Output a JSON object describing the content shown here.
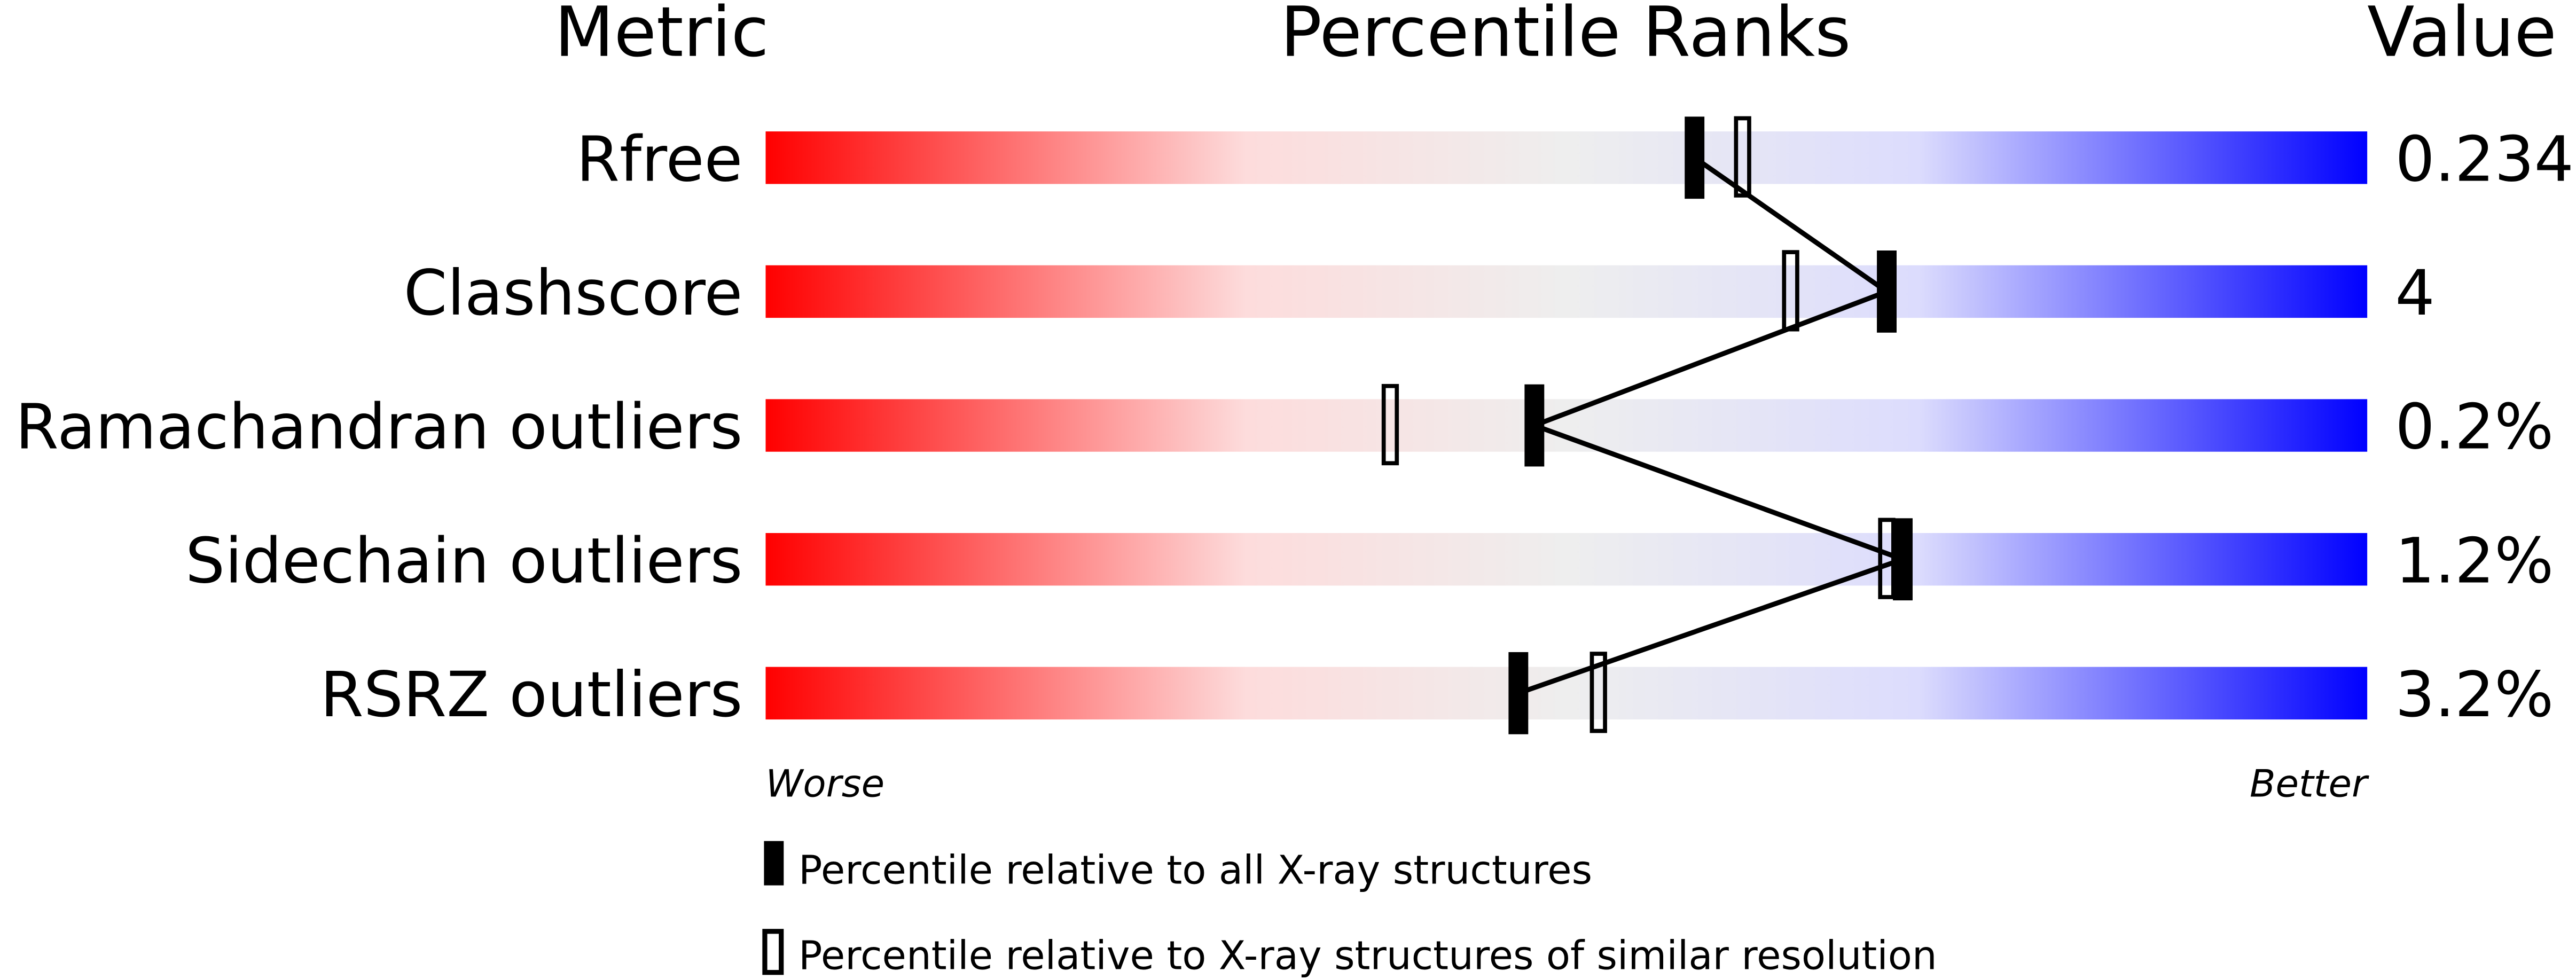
{
  "chart_data": {
    "type": "bar",
    "headers": {
      "metric": "Metric",
      "ranks": "Percentile Ranks",
      "value": "Value"
    },
    "xlim": [
      0,
      100
    ],
    "axis_labels": {
      "left": "Worse",
      "right": "Better"
    },
    "colors": {
      "worse": "#ff0000",
      "neutral": "#eeeeee",
      "better": "#0000ff",
      "marker": "#000000"
    },
    "rows": [
      {
        "metric": "Rfree",
        "value": "0.234",
        "percentile_all": 58,
        "percentile_similar": 61
      },
      {
        "metric": "Clashscore",
        "value": "4",
        "percentile_all": 70,
        "percentile_similar": 64
      },
      {
        "metric": "Ramachandran outliers",
        "value": "0.2%",
        "percentile_all": 48,
        "percentile_similar": 39
      },
      {
        "metric": "Sidechain outliers",
        "value": "1.2%",
        "percentile_all": 71,
        "percentile_similar": 70
      },
      {
        "metric": "RSRZ outliers",
        "value": "3.2%",
        "percentile_all": 47,
        "percentile_similar": 52
      }
    ],
    "legend": [
      {
        "marker": "filled",
        "label": "Percentile relative to all X-ray structures"
      },
      {
        "marker": "open",
        "label": "Percentile relative to X-ray structures of similar resolution"
      }
    ]
  }
}
